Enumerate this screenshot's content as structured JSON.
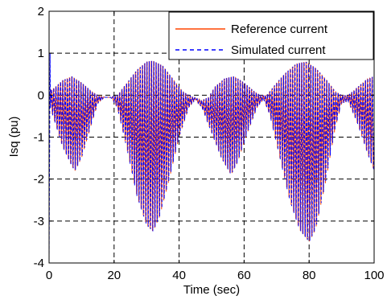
{
  "chart_data": {
    "type": "line",
    "title": "",
    "xlabel": "Time (sec)",
    "ylabel": "Isq (pu)",
    "xlim": [
      0,
      100
    ],
    "ylim": [
      -4,
      2
    ],
    "xticks": [
      0,
      20,
      40,
      60,
      80,
      100
    ],
    "yticks": [
      -4,
      -3,
      -2,
      -1,
      0,
      1,
      2
    ],
    "grid": true,
    "legend_position": "top-right",
    "series": [
      {
        "name": "Reference current",
        "color": "#ff4500",
        "style": "solid",
        "upper_envelope": [
          [
            0,
            0.1
          ],
          [
            2,
            0.2
          ],
          [
            4,
            0.35
          ],
          [
            7,
            0.45
          ],
          [
            10,
            0.3
          ],
          [
            13,
            0.1
          ],
          [
            15,
            0
          ],
          [
            17,
            -0.05
          ],
          [
            19,
            -0.05
          ],
          [
            21,
            0
          ],
          [
            24,
            0.3
          ],
          [
            27,
            0.6
          ],
          [
            30,
            0.8
          ],
          [
            32,
            0.82
          ],
          [
            35,
            0.7
          ],
          [
            38,
            0.4
          ],
          [
            41,
            0.1
          ],
          [
            43,
            0
          ],
          [
            46,
            -0.1
          ],
          [
            47,
            -0.12
          ],
          [
            49,
            -0.05
          ],
          [
            51,
            0.2
          ],
          [
            54,
            0.4
          ],
          [
            57,
            0.45
          ],
          [
            60,
            0.3
          ],
          [
            63,
            0.1
          ],
          [
            65,
            0
          ],
          [
            67,
            0
          ],
          [
            70,
            0.3
          ],
          [
            73,
            0.55
          ],
          [
            76,
            0.75
          ],
          [
            79,
            0.8
          ],
          [
            82,
            0.65
          ],
          [
            85,
            0.4
          ],
          [
            88,
            0.1
          ],
          [
            90,
            0
          ],
          [
            92,
            0
          ],
          [
            95,
            0.2
          ],
          [
            98,
            0.4
          ],
          [
            100,
            0.45
          ]
        ],
        "lower_envelope": [
          [
            0,
            -0.2
          ],
          [
            2,
            -0.7
          ],
          [
            4,
            -1.2
          ],
          [
            7,
            -1.7
          ],
          [
            8,
            -1.8
          ],
          [
            10,
            -1.5
          ],
          [
            13,
            -0.7
          ],
          [
            15,
            -0.2
          ],
          [
            17,
            -0.05
          ],
          [
            19,
            -0.05
          ],
          [
            21,
            -0.3
          ],
          [
            24,
            -1.3
          ],
          [
            27,
            -2.4
          ],
          [
            30,
            -3.1
          ],
          [
            32,
            -3.25
          ],
          [
            34,
            -2.9
          ],
          [
            37,
            -2
          ],
          [
            40,
            -1
          ],
          [
            43,
            -0.3
          ],
          [
            45,
            -0.1
          ],
          [
            47,
            -0.3
          ],
          [
            50,
            -0.9
          ],
          [
            53,
            -1.5
          ],
          [
            56,
            -1.9
          ],
          [
            58,
            -1.6
          ],
          [
            61,
            -0.9
          ],
          [
            64,
            -0.3
          ],
          [
            66,
            -0.1
          ],
          [
            68,
            -0.5
          ],
          [
            71,
            -1.5
          ],
          [
            74,
            -2.5
          ],
          [
            77,
            -3.2
          ],
          [
            80,
            -3.5
          ],
          [
            82,
            -3.2
          ],
          [
            85,
            -2.1
          ],
          [
            88,
            -0.8
          ],
          [
            90,
            -0.2
          ],
          [
            92,
            -0.15
          ],
          [
            95,
            -0.7
          ],
          [
            98,
            -1.4
          ],
          [
            100,
            -1.8
          ]
        ]
      },
      {
        "name": "Simulated current",
        "color": "#0000ff",
        "style": "dashed",
        "upper_envelope": [
          [
            0,
            0.1
          ],
          [
            2,
            0.2
          ],
          [
            4,
            0.35
          ],
          [
            7,
            0.45
          ],
          [
            10,
            0.3
          ],
          [
            13,
            0.1
          ],
          [
            15,
            0
          ],
          [
            17,
            -0.05
          ],
          [
            19,
            -0.05
          ],
          [
            21,
            0
          ],
          [
            24,
            0.3
          ],
          [
            27,
            0.6
          ],
          [
            30,
            0.8
          ],
          [
            32,
            0.82
          ],
          [
            35,
            0.7
          ],
          [
            38,
            0.4
          ],
          [
            41,
            0.1
          ],
          [
            43,
            0
          ],
          [
            46,
            -0.1
          ],
          [
            47,
            -0.12
          ],
          [
            49,
            -0.05
          ],
          [
            51,
            0.2
          ],
          [
            54,
            0.4
          ],
          [
            57,
            0.45
          ],
          [
            60,
            0.3
          ],
          [
            63,
            0.1
          ],
          [
            65,
            0
          ],
          [
            67,
            0
          ],
          [
            70,
            0.3
          ],
          [
            73,
            0.55
          ],
          [
            76,
            0.75
          ],
          [
            79,
            0.8
          ],
          [
            82,
            0.65
          ],
          [
            85,
            0.4
          ],
          [
            88,
            0.1
          ],
          [
            90,
            0
          ],
          [
            92,
            0
          ],
          [
            95,
            0.2
          ],
          [
            98,
            0.4
          ],
          [
            100,
            0.45
          ]
        ],
        "lower_envelope": [
          [
            0,
            -0.2
          ],
          [
            2,
            -0.7
          ],
          [
            4,
            -1.2
          ],
          [
            7,
            -1.7
          ],
          [
            8,
            -1.8
          ],
          [
            10,
            -1.5
          ],
          [
            13,
            -0.7
          ],
          [
            15,
            -0.2
          ],
          [
            17,
            -0.05
          ],
          [
            19,
            -0.05
          ],
          [
            21,
            -0.3
          ],
          [
            24,
            -1.3
          ],
          [
            27,
            -2.4
          ],
          [
            30,
            -3.1
          ],
          [
            32,
            -3.25
          ],
          [
            34,
            -2.9
          ],
          [
            37,
            -2
          ],
          [
            40,
            -1
          ],
          [
            43,
            -0.3
          ],
          [
            45,
            -0.1
          ],
          [
            47,
            -0.3
          ],
          [
            50,
            -0.9
          ],
          [
            53,
            -1.5
          ],
          [
            56,
            -1.9
          ],
          [
            58,
            -1.6
          ],
          [
            61,
            -0.9
          ],
          [
            64,
            -0.3
          ],
          [
            66,
            -0.1
          ],
          [
            68,
            -0.5
          ],
          [
            71,
            -1.5
          ],
          [
            74,
            -2.5
          ],
          [
            77,
            -3.2
          ],
          [
            80,
            -3.5
          ],
          [
            82,
            -3.2
          ],
          [
            85,
            -2.1
          ],
          [
            88,
            -0.8
          ],
          [
            90,
            -0.2
          ],
          [
            92,
            -0.15
          ],
          [
            95,
            -0.7
          ],
          [
            98,
            -1.4
          ],
          [
            100,
            -1.8
          ]
        ],
        "initial_transient": [
          [
            0,
            -3.9
          ],
          [
            0.3,
            1.0
          ]
        ]
      }
    ]
  }
}
